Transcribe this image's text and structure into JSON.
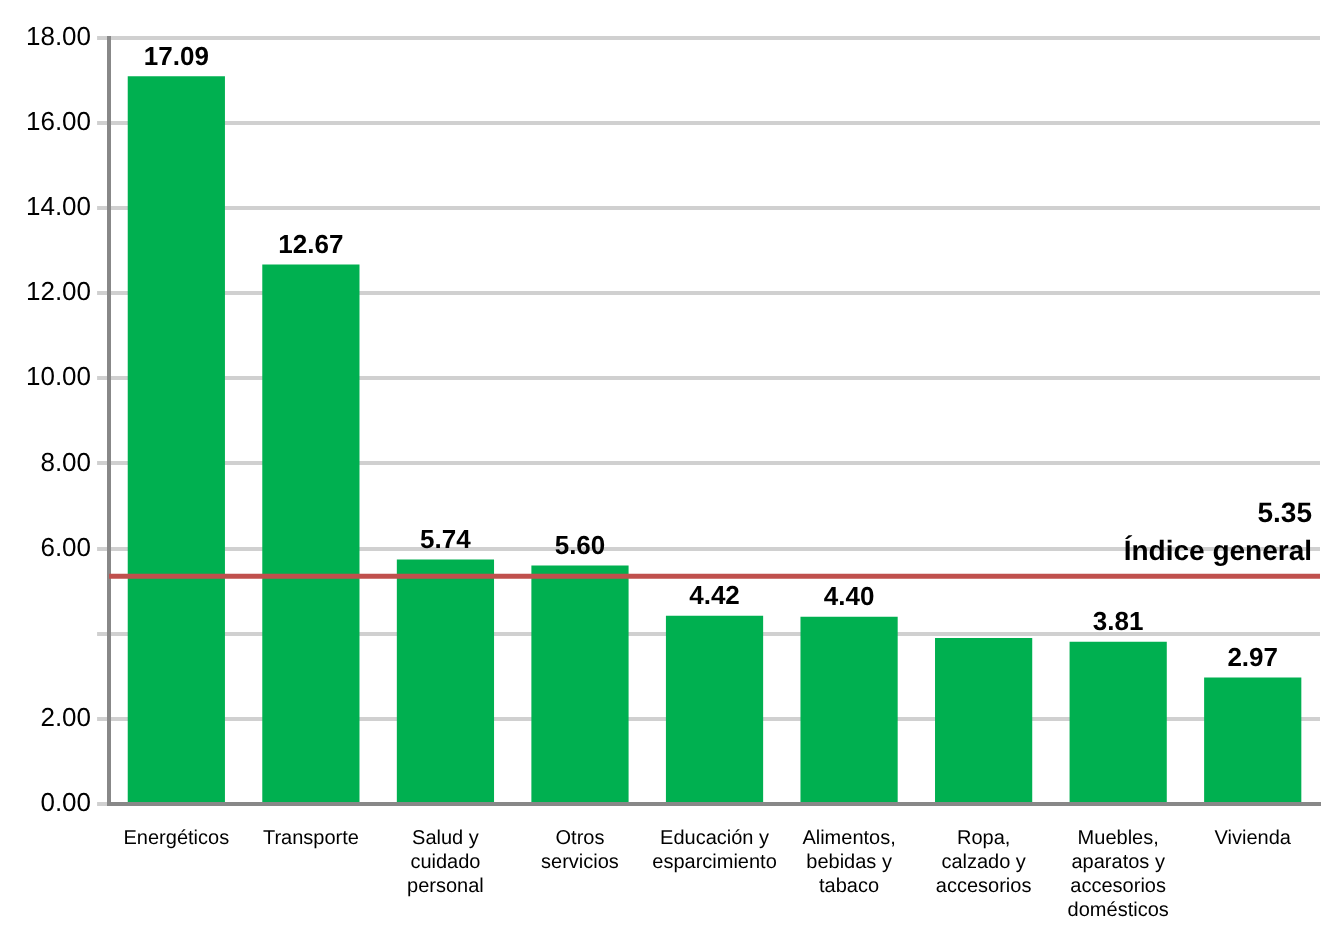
{
  "chart_data": {
    "type": "bar",
    "categories": [
      "Energéticos",
      "Transporte",
      "Salud y cuidado personal",
      "Otros servicios",
      "Educación y esparcimiento",
      "Alimentos, bebidas y tabaco",
      "Ropa, calzado y accesorios",
      "Muebles, aparatos y accesorios domésticos",
      "Vivienda"
    ],
    "values": [
      17.09,
      12.67,
      5.74,
      5.6,
      4.42,
      4.4,
      3.9,
      3.81,
      2.97
    ],
    "value_labels": [
      "17.09",
      "12.67",
      "5.74",
      "5.60",
      "4.42",
      "4.40",
      null,
      "3.81",
      "2.97"
    ],
    "color": "#00b050",
    "ylim": [
      0,
      18
    ],
    "yticks": [
      {
        "value": 0,
        "label": "0.00"
      },
      {
        "value": 2,
        "label": "2.00"
      },
      {
        "value": 4,
        "label": null
      },
      {
        "value": 6,
        "label": "6.00"
      },
      {
        "value": 8,
        "label": "8.00"
      },
      {
        "value": 10,
        "label": "10.00"
      },
      {
        "value": 12,
        "label": "12.00"
      },
      {
        "value": 14,
        "label": "14.00"
      },
      {
        "value": 16,
        "label": "16.00"
      },
      {
        "value": 18,
        "label": "18.00"
      }
    ],
    "grid": "y",
    "legend": false,
    "annotations": [
      {
        "text": "5.35",
        "y": 5.35
      }
    ],
    "ref_lines": [
      {
        "axis": "y",
        "value": 5.35,
        "label": "Índice general",
        "color": "#c0504d"
      }
    ]
  }
}
